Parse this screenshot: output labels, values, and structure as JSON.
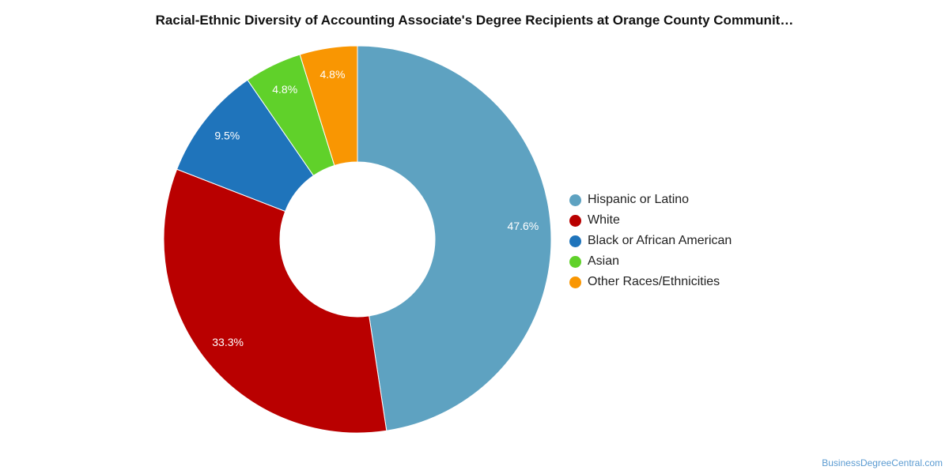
{
  "chart_data": {
    "type": "pie",
    "title": "Racial-Ethnic Diversity of Accounting Associate's Degree Recipients at Orange County Communit…",
    "categories": [
      "Hispanic or Latino",
      "White",
      "Black or African American",
      "Asian",
      "Other Races/Ethnicities"
    ],
    "values": [
      47.6,
      33.3,
      9.5,
      4.8,
      4.8
    ],
    "labels": [
      "47.6%",
      "33.3%",
      "9.5%",
      "4.8%",
      "4.8%"
    ],
    "colors": [
      "#5ea2c1",
      "#b90000",
      "#1f74bb",
      "#60d12a",
      "#f99602"
    ],
    "donut": true,
    "legend_position": "right"
  },
  "watermark": "BusinessDegreeCentral.com"
}
